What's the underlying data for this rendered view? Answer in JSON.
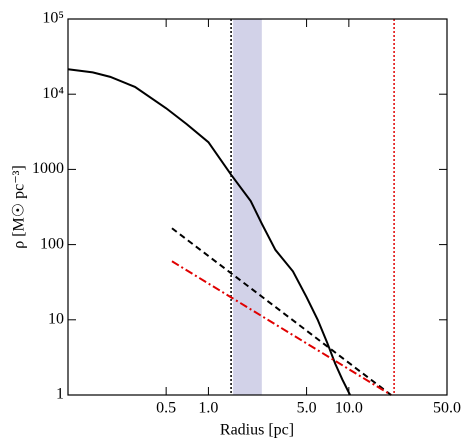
{
  "chart_data": {
    "type": "line",
    "xlabel": "Radius  [pc]",
    "ylabel": "ρ  [M☉ pc⁻³]",
    "xscale": "log",
    "yscale": "log",
    "xlim": [
      0.1,
      50
    ],
    "ylim": [
      1,
      100000
    ],
    "xticks": [
      0.5,
      {
        "value": 1,
        "label": "1.0"
      },
      {
        "value": 5,
        "label": "5.0"
      },
      {
        "value": 10,
        "label": "10.0"
      },
      {
        "value": 50,
        "label": "50.0"
      }
    ],
    "yticks": [
      1,
      10,
      100,
      1000,
      {
        "value": 10000,
        "label": "10⁴"
      },
      {
        "value": 100000,
        "label": "10⁵"
      }
    ],
    "span": {
      "x": [
        1.5,
        2.4
      ],
      "color": "#d2d2e8"
    },
    "vlines": [
      {
        "x": 1.45,
        "color": "#000000",
        "style": "dotted"
      },
      {
        "x": 21,
        "color": "#e00000",
        "style": "dotted"
      }
    ],
    "series": [
      {
        "color": "#000000",
        "style": "solid",
        "x": [
          0.1,
          0.15,
          0.2,
          0.3,
          0.5,
          0.7,
          1.0,
          1.45,
          2.0,
          2.4,
          3.0,
          4.0,
          5.0,
          6.0,
          7.0,
          8.0,
          9.0,
          10.2
        ],
        "values": [
          21500,
          19500,
          17000,
          12500,
          6500,
          4000,
          2300,
          850,
          380,
          190,
          85,
          44,
          20,
          10,
          5,
          2.6,
          1.6,
          1.0
        ]
      },
      {
        "color": "#000000",
        "style": "dashed",
        "x": [
          0.55,
          20
        ],
        "values": [
          165,
          1
        ]
      },
      {
        "color": "#e00000",
        "style": "dashdot",
        "x": [
          0.55,
          20
        ],
        "values": [
          60,
          1
        ]
      }
    ]
  }
}
